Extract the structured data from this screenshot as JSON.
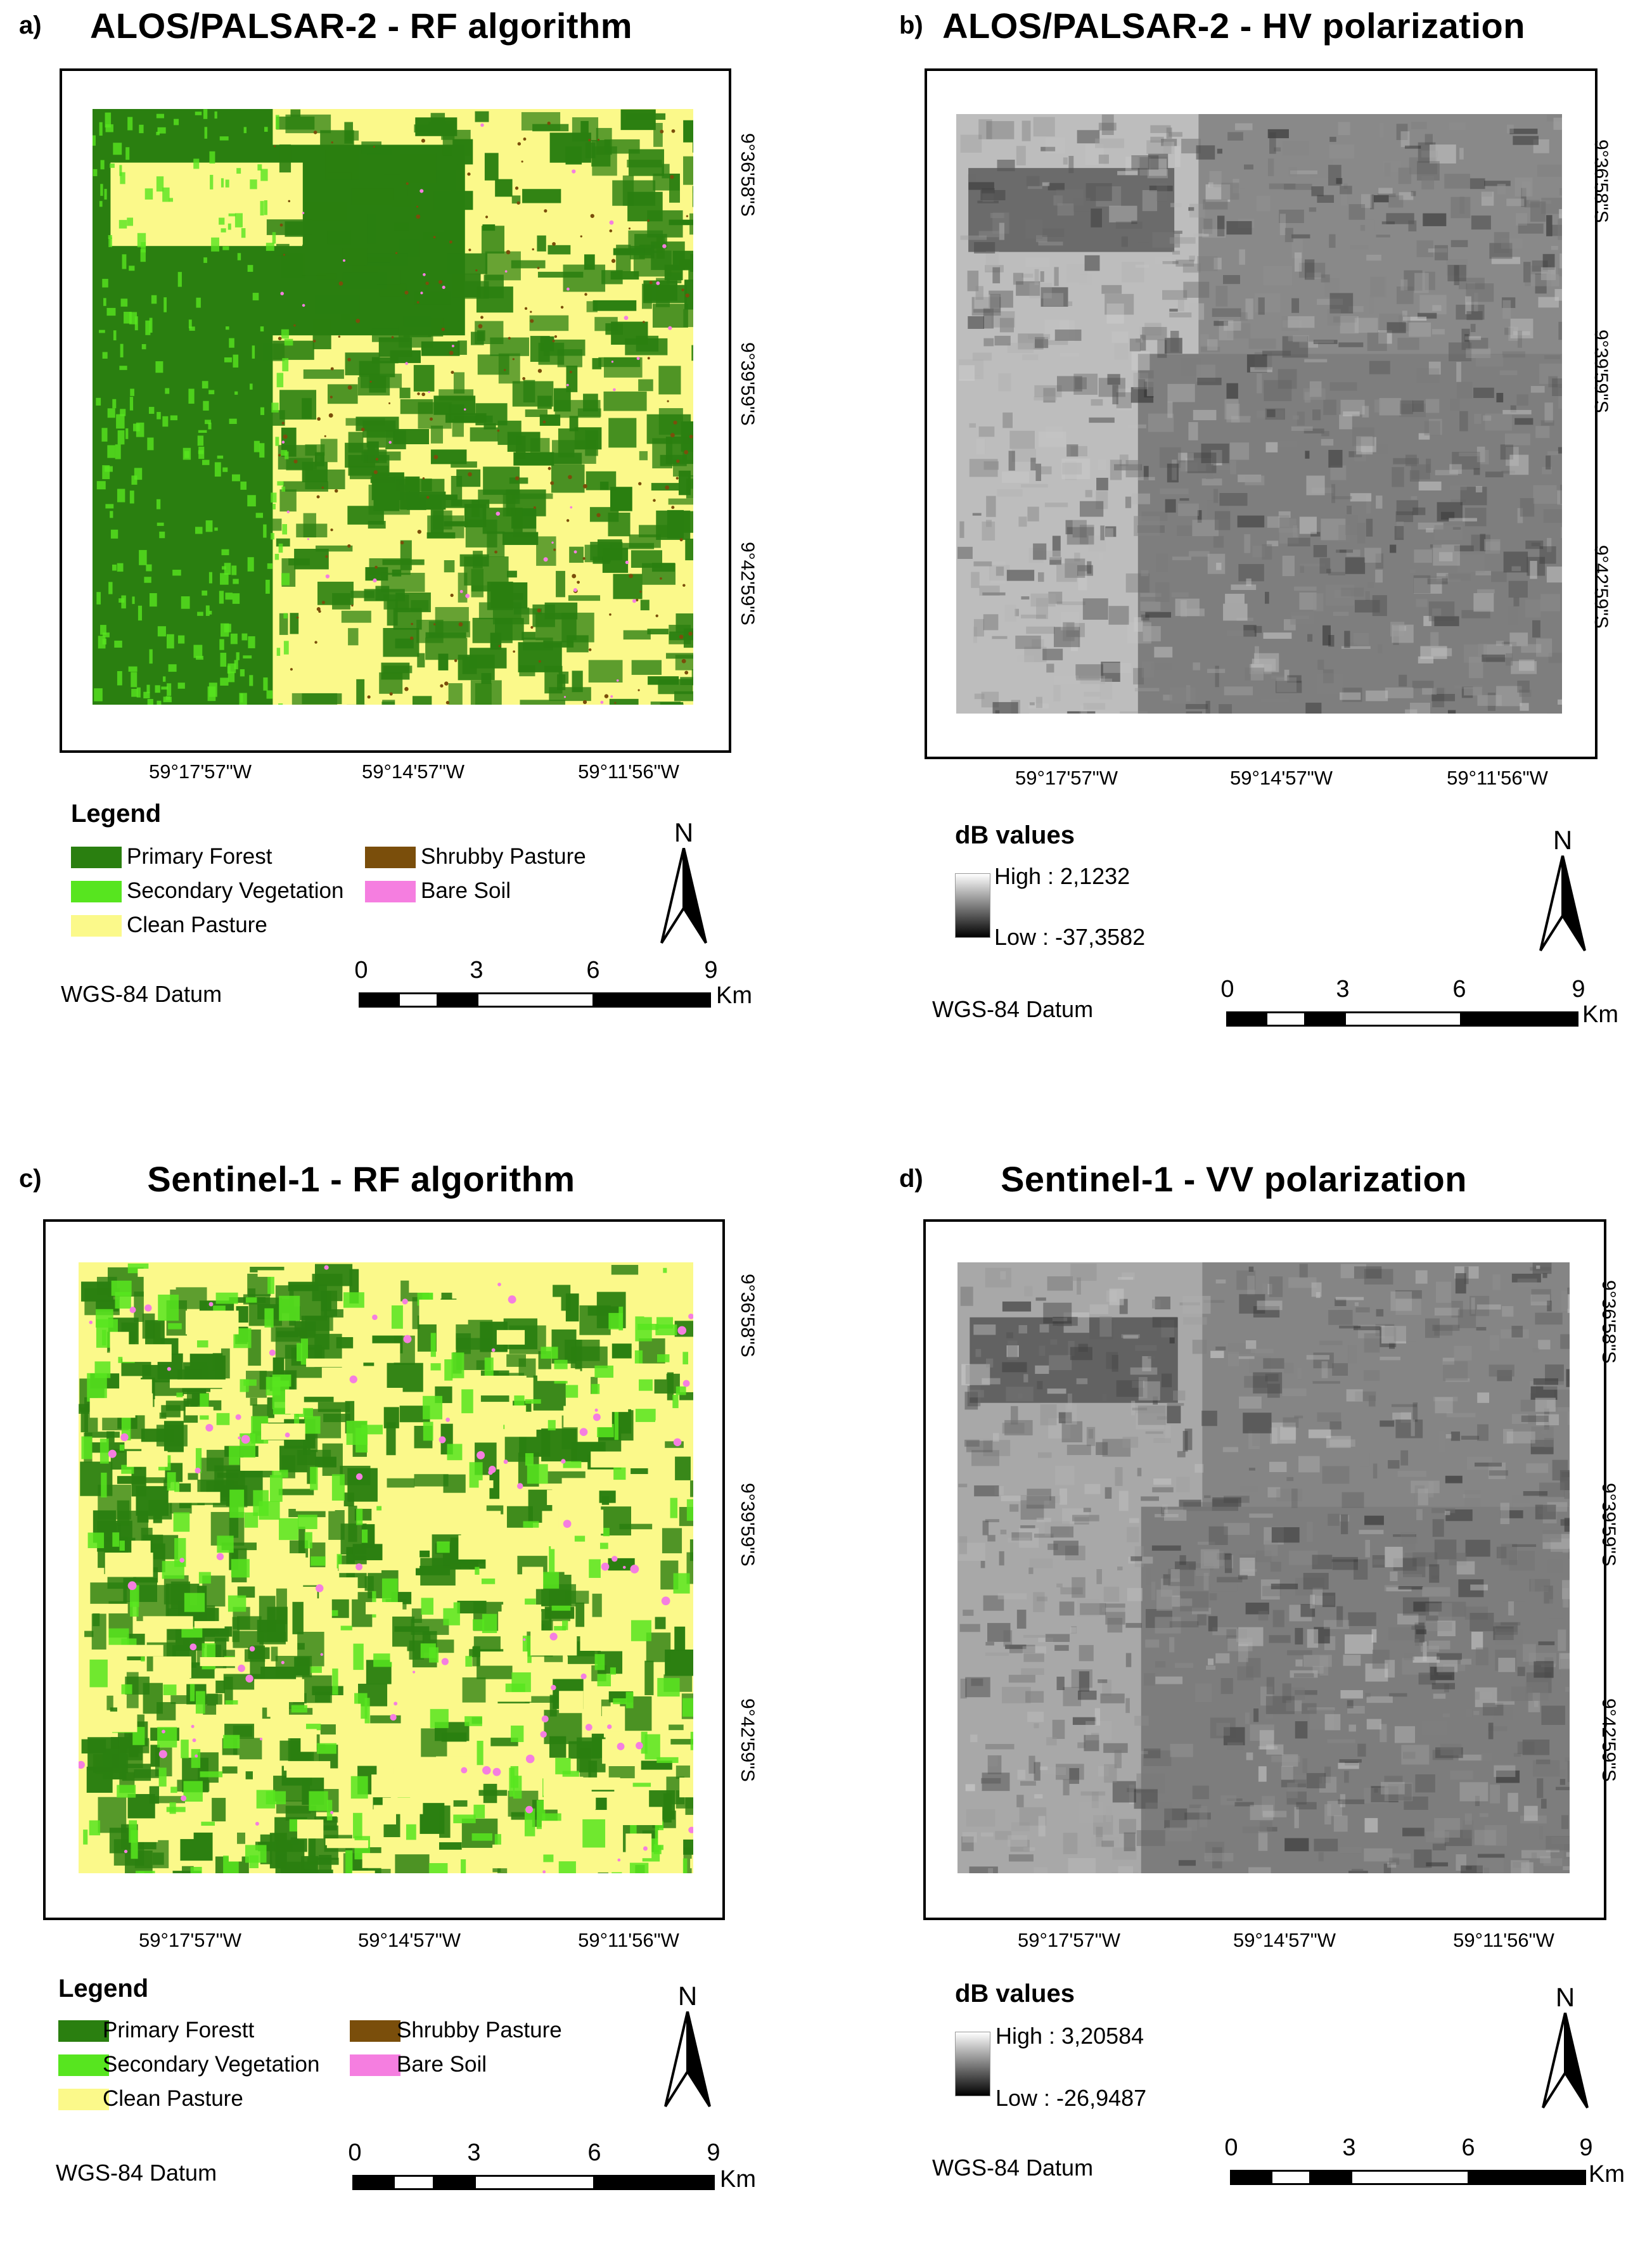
{
  "panels": [
    {
      "label": "a)",
      "title": "ALOS/PALSAR-2 - RF algorithm",
      "map_kind": "classification",
      "lat_ticks": [
        "9°36'58\"S",
        "9°39'59\"S",
        "9°42'59\"S"
      ],
      "lon_ticks": [
        "59°17'57\"W",
        "59°14'57\"W",
        "59°11'56\"W"
      ],
      "legend": {
        "title": "Legend",
        "items": [
          {
            "label": "Primary Forest",
            "color": "#2a7f10"
          },
          {
            "label": "Secondary Vegetation",
            "color": "#57e51f"
          },
          {
            "label": "Clean Pasture",
            "color": "#fbf98a"
          },
          {
            "label": "Shrubby Pasture",
            "color": "#7a4e0b"
          },
          {
            "label": "Bare Soil",
            "color": "#f57ee0"
          }
        ]
      },
      "north": "N",
      "datum": "WGS-84 Datum",
      "scale": {
        "ticks": [
          "0",
          "3",
          "6",
          "9"
        ],
        "unit": "Km"
      }
    },
    {
      "label": "b)",
      "title": "ALOS/PALSAR-2 - HV polarization",
      "map_kind": "sar",
      "lat_ticks": [
        "9°36'58\"S",
        "9°39'59\"S",
        "9°42'59\"S"
      ],
      "lon_ticks": [
        "59°17'57\"W",
        "59°14'57\"W",
        "59°11'56\"W"
      ],
      "legend": {
        "title": "dB values",
        "high": "High : 2,1232",
        "low": "Low : -37,3582"
      },
      "north": "N",
      "datum": "WGS-84 Datum",
      "scale": {
        "ticks": [
          "0",
          "3",
          "6",
          "9"
        ],
        "unit": "Km"
      }
    },
    {
      "label": "c)",
      "title": "Sentinel-1 - RF algorithm",
      "map_kind": "classification",
      "lat_ticks": [
        "9°36'58\"S",
        "9°39'59\"S",
        "9°42'59\"S"
      ],
      "lon_ticks": [
        "59°17'57\"W",
        "59°14'57\"W",
        "59°11'56\"W"
      ],
      "legend": {
        "title": "Legend",
        "items": [
          {
            "label": "Primary Forestt",
            "color": "#2a7f10"
          },
          {
            "label": "Secondary Vegetation",
            "color": "#57e51f"
          },
          {
            "label": "Clean Pasture",
            "color": "#fbf98a"
          },
          {
            "label": "Shrubby Pasture",
            "color": "#7a4e0b"
          },
          {
            "label": "Bare Soil",
            "color": "#f57ee0"
          }
        ]
      },
      "north": "N",
      "datum": "WGS-84 Datum",
      "scale": {
        "ticks": [
          "0",
          "3",
          "6",
          "9"
        ],
        "unit": "Km"
      }
    },
    {
      "label": "d)",
      "title": "Sentinel-1 - VV polarization",
      "map_kind": "sar",
      "lat_ticks": [
        "9°36'58\"S",
        "9°39'59\"S",
        "9°42'59\"S"
      ],
      "lon_ticks": [
        "59°17'57\"W",
        "59°14'57\"W",
        "59°11'56\"W"
      ],
      "legend": {
        "title": "dB values",
        "high": "High : 3,20584",
        "low": "Low : -26,9487"
      },
      "north": "N",
      "datum": "WGS-84 Datum",
      "scale": {
        "ticks": [
          "0",
          "3",
          "6",
          "9"
        ],
        "unit": "Km"
      }
    }
  ]
}
